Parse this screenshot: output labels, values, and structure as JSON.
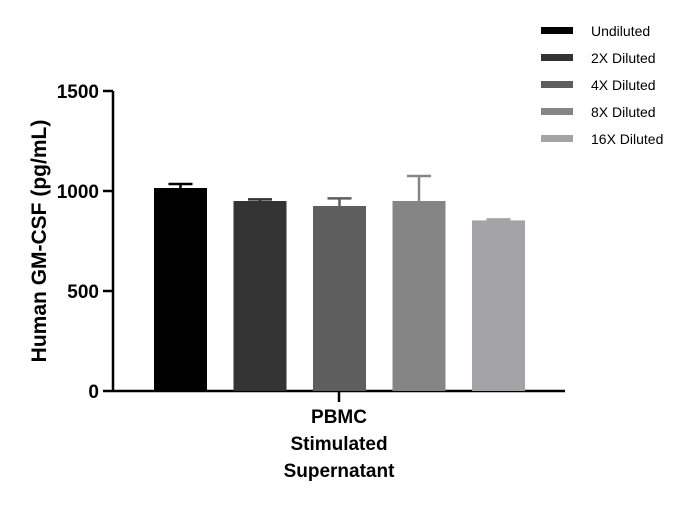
{
  "chart_data": {
    "type": "bar",
    "ylabel": "Human GM-CSF (pg/mL)",
    "xlabel": "",
    "categories": [
      "PBMC\nStimulated\nSupernatant"
    ],
    "category_lines": [
      "PBMC",
      "Stimulated",
      "Supernatant"
    ],
    "yticks": [
      0,
      500,
      1000,
      1500
    ],
    "ylim": [
      0,
      1500
    ],
    "grid": false,
    "legend_position": "top-right",
    "series": [
      {
        "name": "Undiluted",
        "values": [
          1015
        ],
        "error": [
          20
        ],
        "color": "#000000"
      },
      {
        "name": "2X Diluted",
        "values": [
          950
        ],
        "error": [
          8
        ],
        "color": "#333333"
      },
      {
        "name": "4X Diluted",
        "values": [
          925
        ],
        "error": [
          38
        ],
        "color": "#5e5e5e"
      },
      {
        "name": "8X Diluted",
        "values": [
          950
        ],
        "error": [
          125
        ],
        "color": "#858585"
      },
      {
        "name": "16X Diluted",
        "values": [
          853
        ],
        "error": [
          5
        ],
        "color": "#a4a4a7"
      }
    ]
  }
}
